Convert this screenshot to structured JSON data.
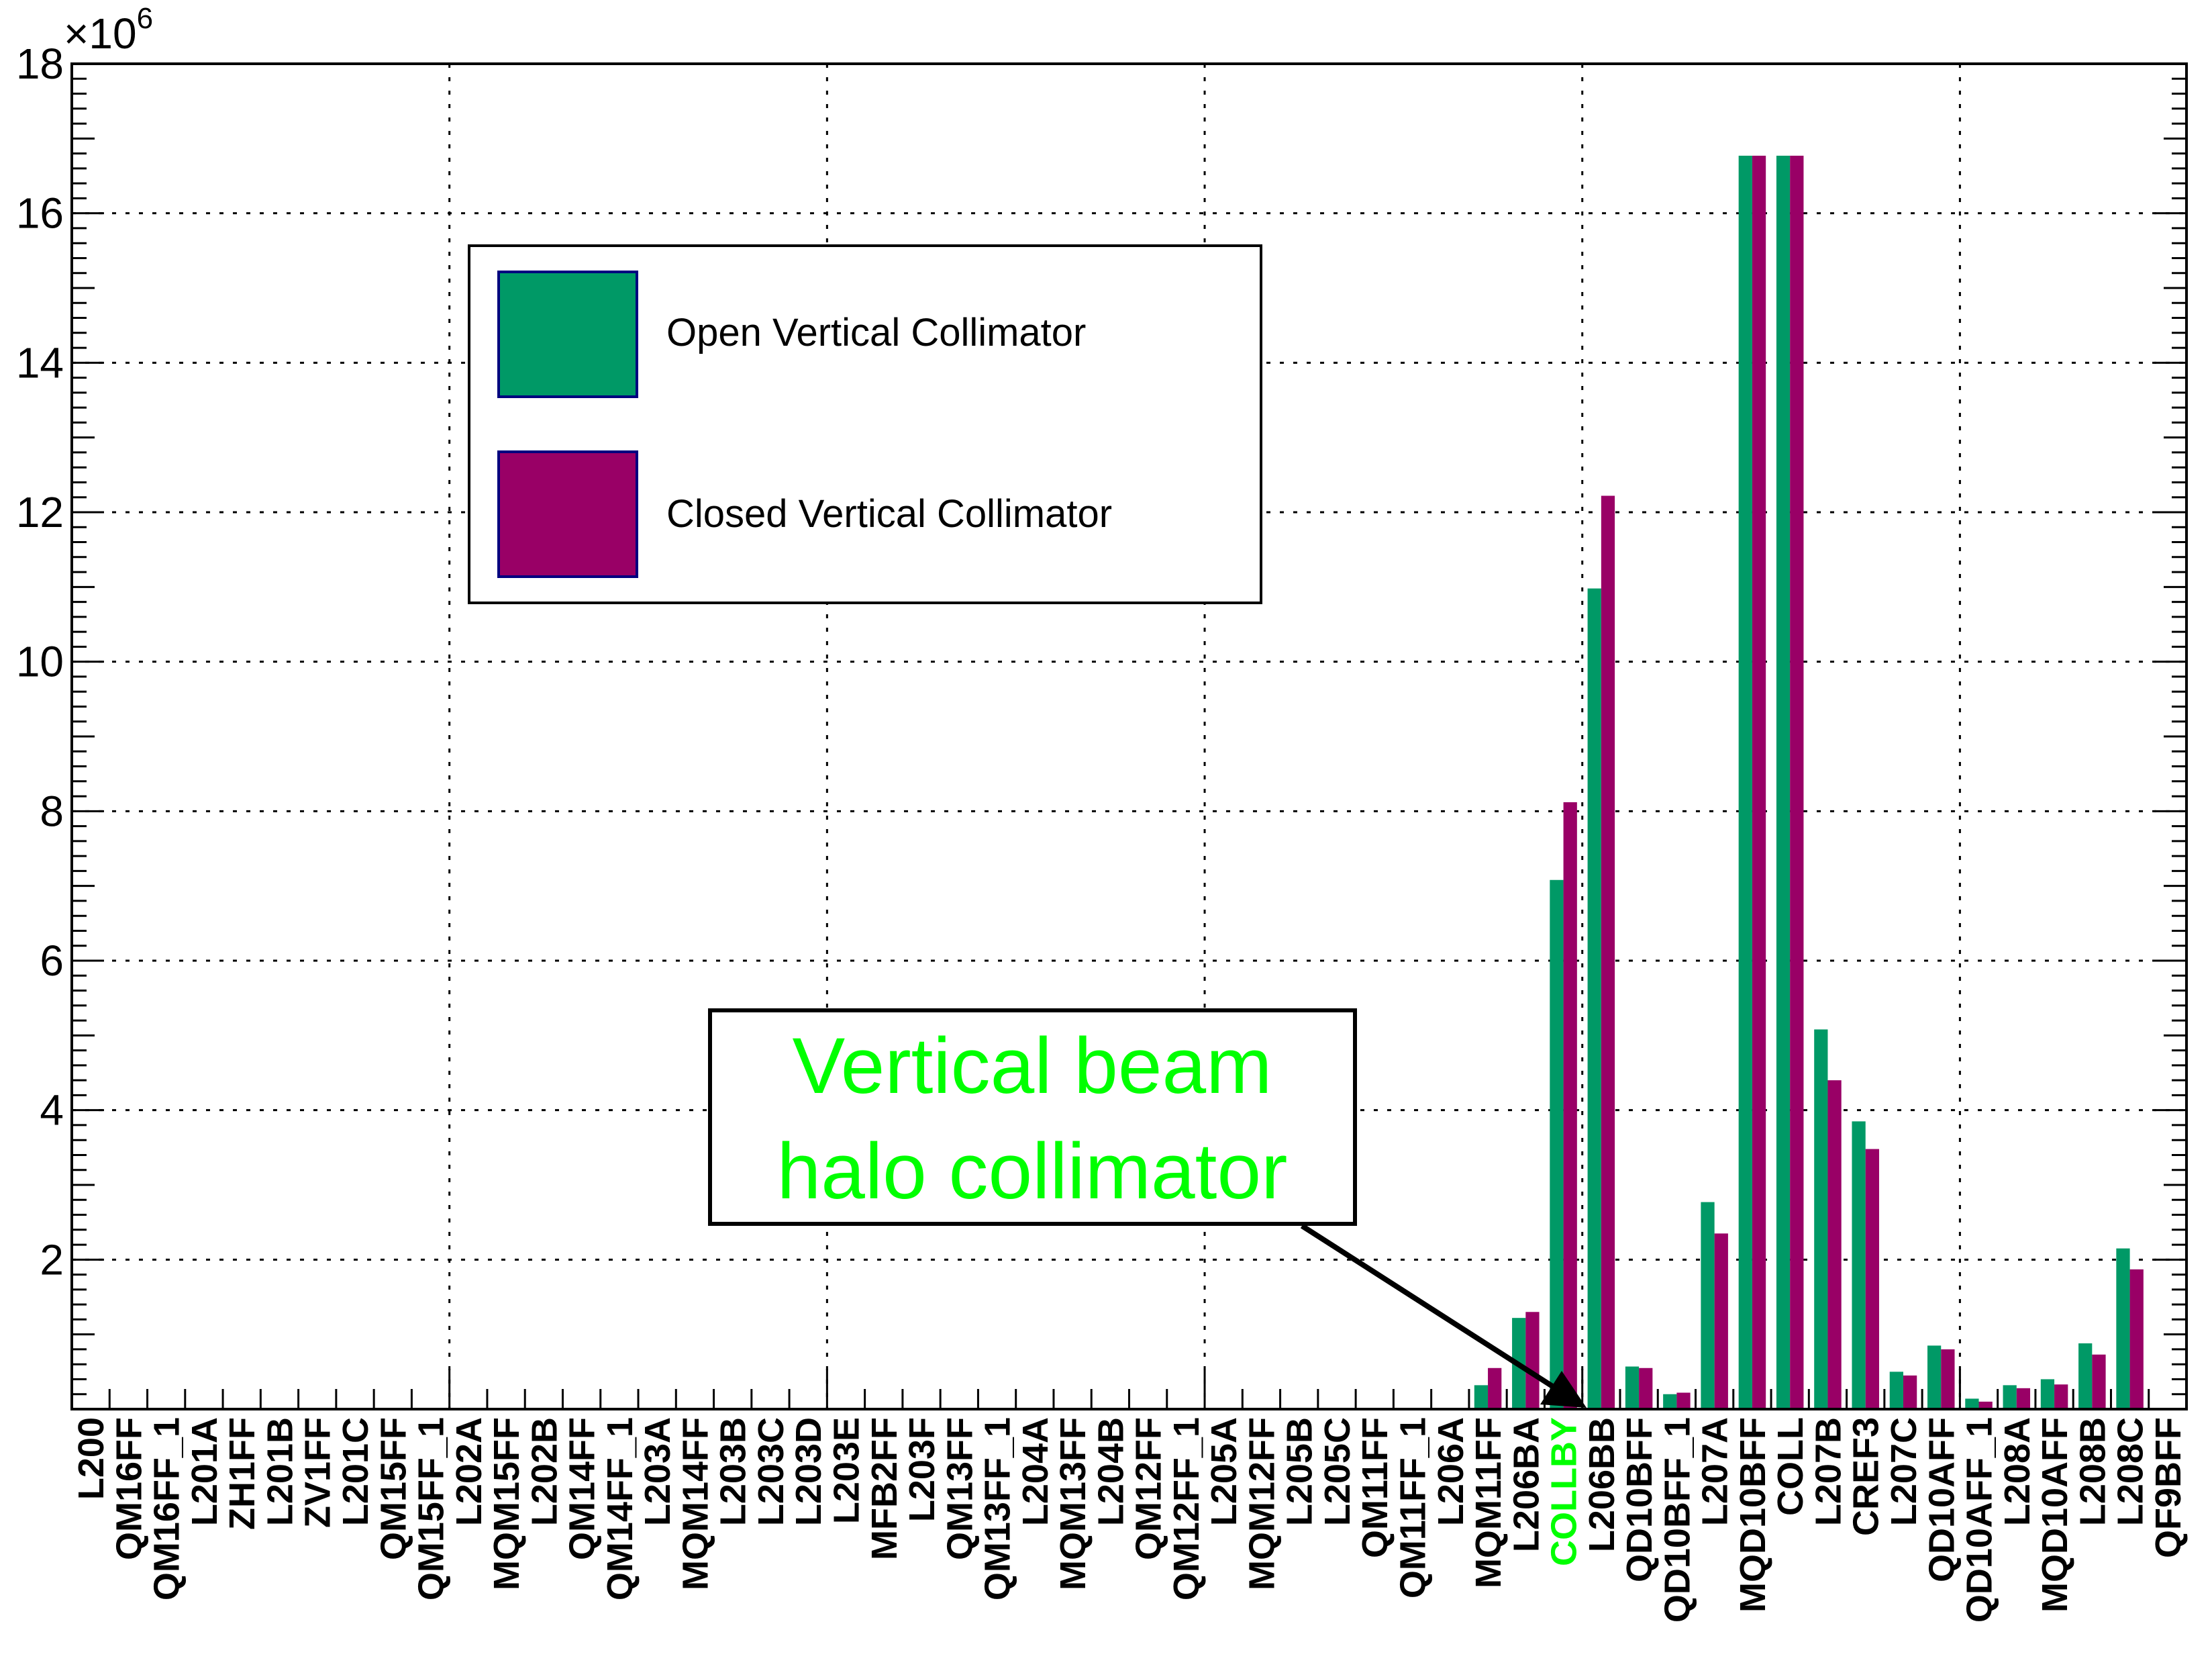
{
  "colors": {
    "open": "#009966",
    "closed": "#990066",
    "annotation_text": "#00ff00",
    "highlight_label": "#00ff00",
    "frame": "#000000",
    "swatch_border": "#00007f"
  },
  "chart_data": {
    "type": "bar",
    "title": "",
    "xlabel": "",
    "ylabel": "",
    "y_multiplier_label": "×10",
    "y_multiplier_exponent": "6",
    "ylim": [
      0,
      18
    ],
    "y_major_ticks": [
      "2",
      "4",
      "6",
      "8",
      "10",
      "12",
      "14",
      "16",
      "18"
    ],
    "grid": true,
    "legend_position": "upper-left-center",
    "highlight_category": "COLLBY",
    "categories": [
      "L200",
      "QM16FF",
      "QM16FF_1",
      "L201A",
      "ZH1FF",
      "L201B",
      "ZV1FF",
      "L201C",
      "QM15FF",
      "QM15FF_1",
      "L202A",
      "MQM15FF",
      "L202B",
      "QM14FF",
      "QM14FF_1",
      "L203A",
      "MQM14FF",
      "L203B",
      "L203C",
      "L203D",
      "L203E",
      "MFB2FF",
      "L203F",
      "QM13FF",
      "QM13FF_1",
      "L204A",
      "MQM13FF",
      "L204B",
      "QM12FF",
      "QM12FF_1",
      "L205A",
      "MQM12FF",
      "L205B",
      "L205C",
      "QM11FF",
      "QM11FF_1",
      "L206A",
      "MQM11FF",
      "L206BA",
      "COLLBY",
      "L206BB",
      "QD10BFF",
      "QD10BFF_1",
      "L207A",
      "MQD10BFF",
      "COLL",
      "L207B",
      "CREF3",
      "L207C",
      "QD10AFF",
      "QD10AFF_1",
      "L208A",
      "MQD10AFF",
      "L208B",
      "L208C",
      "QF9BFF"
    ],
    "series": [
      {
        "name": "Open Vertical Collimator",
        "values": [
          0,
          0,
          0,
          0,
          0,
          0,
          0,
          0,
          0,
          0,
          0,
          0,
          0,
          0,
          0,
          0,
          0,
          0,
          0,
          0,
          0,
          0,
          0,
          0,
          0,
          0,
          0,
          0,
          0,
          0,
          0,
          0,
          0,
          0,
          0,
          0,
          0,
          0.32,
          1.22,
          7.08,
          10.98,
          0.57,
          0.2,
          2.77,
          16.77,
          16.77,
          5.08,
          3.85,
          0.5,
          0.85,
          0.14,
          0.32,
          0.4,
          0.88,
          2.15,
          0
        ]
      },
      {
        "name": "Closed Vertical Collimator",
        "values": [
          0,
          0,
          0,
          0,
          0,
          0,
          0,
          0,
          0,
          0,
          0,
          0,
          0,
          0,
          0,
          0,
          0,
          0,
          0,
          0,
          0,
          0,
          0,
          0,
          0,
          0,
          0,
          0,
          0,
          0,
          0,
          0,
          0,
          0,
          0,
          0,
          0,
          0.55,
          1.3,
          8.12,
          12.22,
          0.55,
          0.22,
          2.35,
          16.77,
          16.77,
          4.4,
          3.48,
          0.45,
          0.8,
          0.1,
          0.28,
          0.33,
          0.73,
          1.87,
          0
        ]
      }
    ],
    "annotation": {
      "lines": [
        "Vertical beam",
        "halo collimator"
      ],
      "points_to": "COLLBY"
    }
  }
}
